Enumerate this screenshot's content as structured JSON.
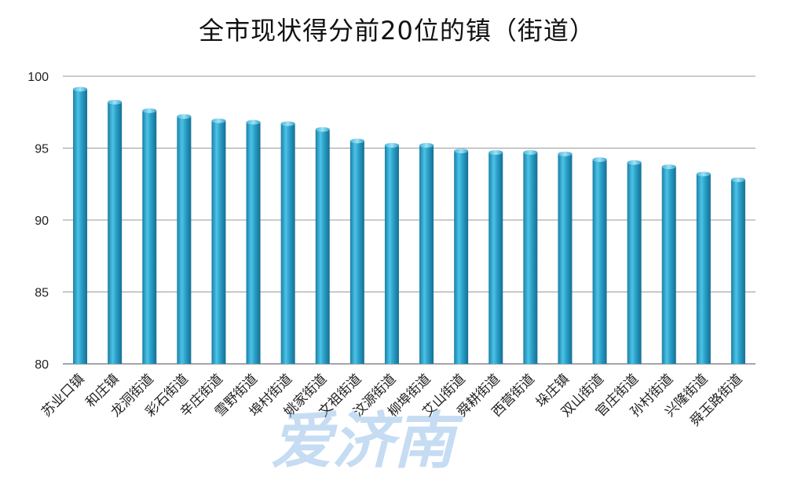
{
  "title": "全市现状得分前20位的镇（街道）",
  "watermark": "爱济南",
  "chart_data": {
    "type": "bar",
    "title": "全市现状得分前20位的镇（街道）",
    "xlabel": "",
    "ylabel": "",
    "ylim": [
      80,
      100
    ],
    "yticks": [
      80,
      85,
      90,
      95,
      100
    ],
    "grid": true,
    "legend": "none",
    "bar_color": "#2aa0c8",
    "categories": [
      "苏业口镇",
      "和庄镇",
      "龙洞街道",
      "彩石街道",
      "辛庄街道",
      "雪野街道",
      "埠村街道",
      "姚家街道",
      "文祖街道",
      "汶源街道",
      "柳埠街道",
      "艾山街道",
      "舜耕街道",
      "西营街道",
      "垛庄镇",
      "双山街道",
      "官庄街道",
      "孙村街道",
      "兴隆街道",
      "舜玉路街道"
    ],
    "values": [
      99.1,
      98.2,
      97.6,
      97.2,
      96.9,
      96.8,
      96.7,
      96.3,
      95.5,
      95.2,
      95.2,
      94.8,
      94.7,
      94.7,
      94.6,
      94.2,
      94.0,
      93.7,
      93.2,
      92.8
    ]
  }
}
